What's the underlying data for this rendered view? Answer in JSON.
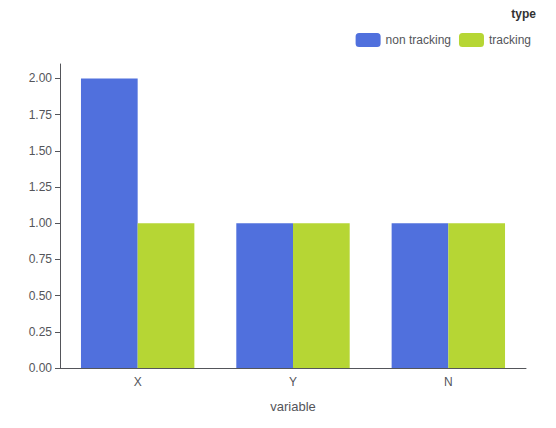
{
  "chart_data": {
    "type": "bar",
    "xlabel": "variable",
    "legend_title": "type",
    "categories": [
      "X",
      "Y",
      "N"
    ],
    "series": [
      {
        "name": "non tracking",
        "values": [
          2,
          1,
          1
        ]
      },
      {
        "name": "tracking",
        "values": [
          1,
          1,
          1
        ]
      }
    ],
    "ylim": [
      0,
      2.1
    ],
    "yticks": [
      {
        "value": 0,
        "label": "0.00"
      },
      0.25,
      {
        "value": 0.5,
        "label": "0.50"
      },
      0.75,
      {
        "value": 1,
        "label": "1.00"
      },
      1.25,
      {
        "value": 1.5,
        "label": "1.50"
      },
      1.75,
      {
        "value": 2,
        "label": "2.00"
      }
    ],
    "legend": "upper right",
    "grid": false
  }
}
